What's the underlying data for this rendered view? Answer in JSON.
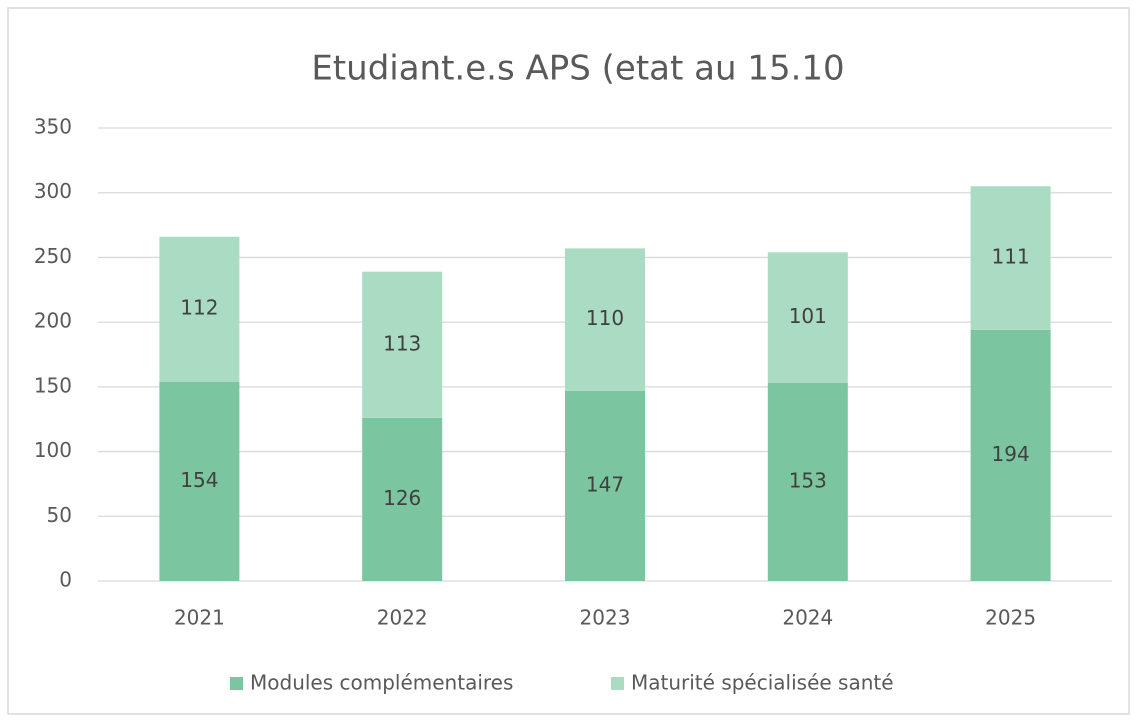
{
  "chart_data": {
    "type": "stacked_bar",
    "title": "Etudiant.e.s APS (etat au 15.10",
    "categories": [
      "2021",
      "2022",
      "2023",
      "2024",
      "2025"
    ],
    "series": [
      {
        "name": "Modules complémentaires",
        "color": "#7cc5a1",
        "values": [
          154,
          126,
          147,
          153,
          194
        ]
      },
      {
        "name": "Maturité spécialisée santé",
        "color": "#aadcc3",
        "values": [
          112,
          113,
          110,
          101,
          111
        ]
      }
    ],
    "ylim": [
      0,
      350
    ],
    "yticks": [
      0,
      50,
      100,
      150,
      200,
      250,
      300,
      350
    ],
    "grid": true,
    "legend": "bottom"
  }
}
